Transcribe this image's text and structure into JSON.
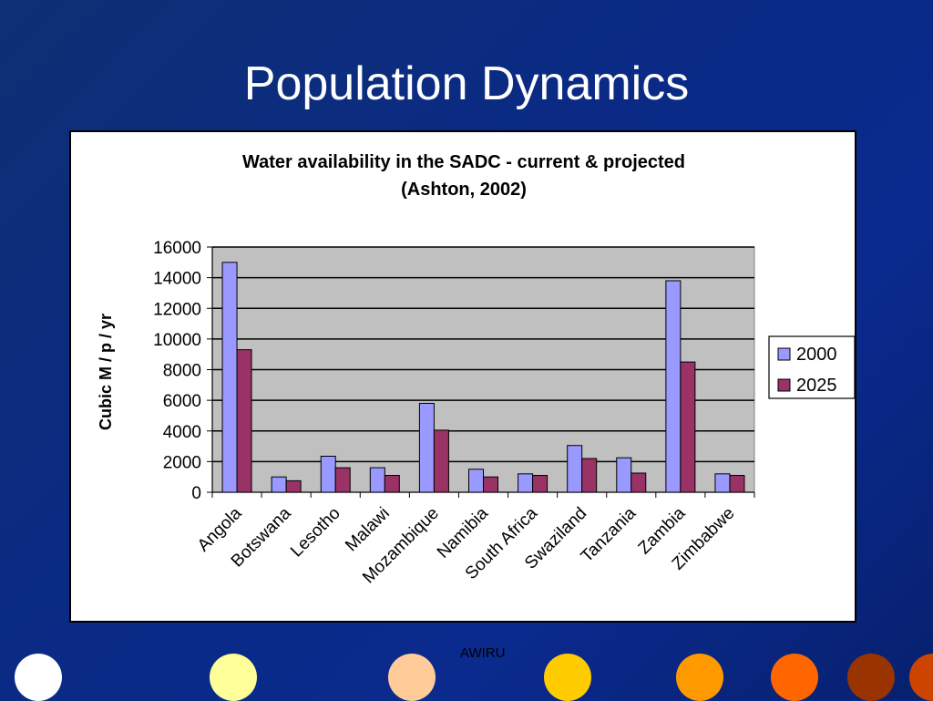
{
  "slide": {
    "title": "Population Dynamics",
    "footer": "AWIRU"
  },
  "decor": {
    "dot_colors": [
      "#ffffff",
      "#ffff99",
      "#ffcc99",
      "#ffcc00",
      "#ff9900",
      "#ff6600",
      "#993300",
      "#cc4400"
    ]
  },
  "chart_data": {
    "type": "bar",
    "title": "Water availability in the SADC - current & projected",
    "subtitle": "(Ashton, 2002)",
    "xlabel": "",
    "ylabel": "Cubic M / p / yr",
    "ylim": [
      0,
      16000
    ],
    "yticks": [
      0,
      2000,
      4000,
      6000,
      8000,
      10000,
      12000,
      14000,
      16000
    ],
    "grid": true,
    "legend_position": "right",
    "categories": [
      "Angola",
      "Botswana",
      "Lesotho",
      "Malawi",
      "Mozambique",
      "Namibia",
      "South Africa",
      "Swaziland",
      "Tanzania",
      "Zambia",
      "Zimbabwe"
    ],
    "series": [
      {
        "name": "2000",
        "color": "#9999ff",
        "values": [
          15000,
          1000,
          2350,
          1600,
          5800,
          1500,
          1200,
          3050,
          2250,
          13800,
          1200
        ]
      },
      {
        "name": "2025",
        "color": "#993366",
        "values": [
          9300,
          750,
          1600,
          1100,
          4050,
          1000,
          1100,
          2200,
          1250,
          8500,
          1100
        ]
      }
    ]
  }
}
